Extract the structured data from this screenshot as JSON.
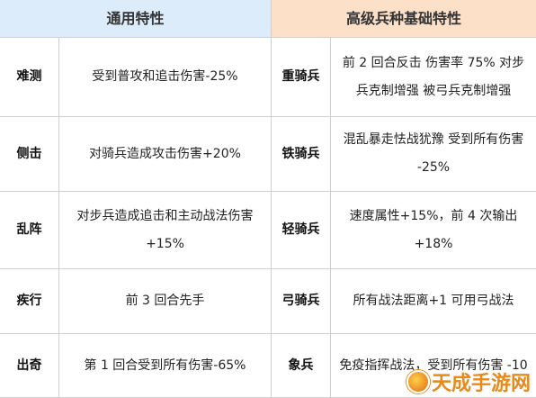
{
  "header": {
    "left": "通用特性",
    "right": "高级兵种基础特性"
  },
  "rows": [
    {
      "trait": "难测",
      "trait_desc": "受到普攻和追击伤害-25%",
      "unit": "重骑兵",
      "unit_desc": "前 2 回合反击  伤害率 75%  对步兵克制增强  被弓兵克制增强"
    },
    {
      "trait": "侧击",
      "trait_desc": "对骑兵造成攻击伤害+20%",
      "unit": "铁骑兵",
      "unit_desc": "混乱暴走怯战犹豫  受到所有伤害 -25%"
    },
    {
      "trait": "乱阵",
      "trait_desc": "对步兵造成追击和主动战法伤害 +15%",
      "unit": "轻骑兵",
      "unit_desc": "速度属性+15%，前 4 次输出 +18%"
    },
    {
      "trait": "疾行",
      "trait_desc": "前 3 回合先手",
      "unit": "弓骑兵",
      "unit_desc": "所有战法距离+1    可用弓战法"
    },
    {
      "trait": "出奇",
      "trait_desc": "第 1 回合受到所有伤害-65%",
      "unit": "象兵",
      "unit_desc": "免疫指挥战法，受到所有伤害 -10"
    }
  ],
  "watermark": "天成手游网"
}
